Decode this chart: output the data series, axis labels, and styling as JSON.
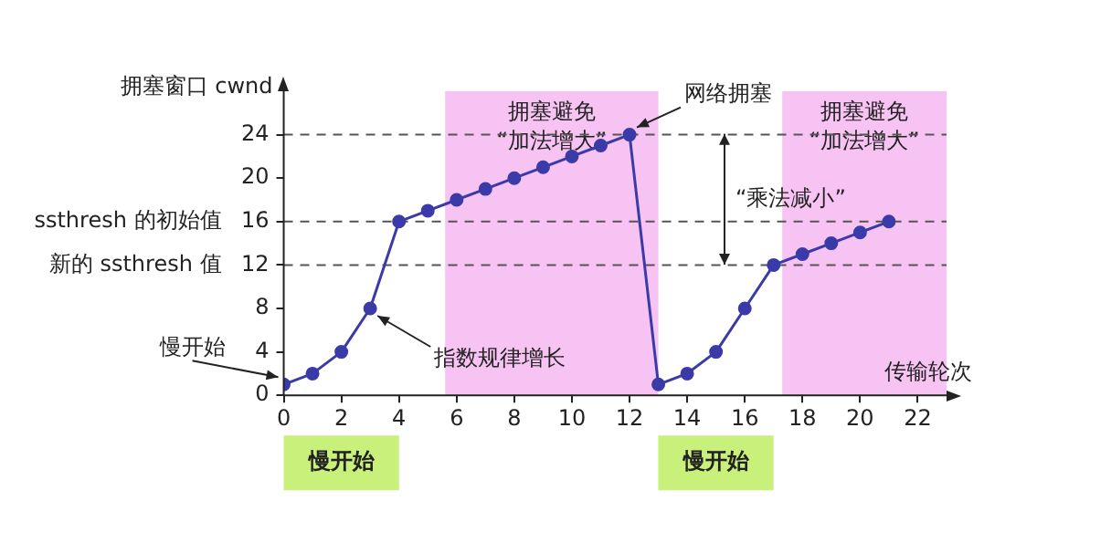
{
  "chart_data": {
    "type": "line",
    "xlabel": "传输轮次",
    "ylabel": "拥塞窗口 cwnd",
    "x": [
      0,
      1,
      2,
      3,
      4,
      5,
      6,
      7,
      8,
      9,
      10,
      11,
      12,
      13,
      14,
      15,
      16,
      17,
      18,
      19,
      20,
      21
    ],
    "series": [
      {
        "color": "#3a3aa8",
        "values": [
          1,
          2,
          4,
          8,
          16,
          17,
          18,
          19,
          20,
          21,
          22,
          23,
          24,
          1,
          2,
          4,
          8,
          12,
          13,
          14,
          15,
          16
        ]
      }
    ],
    "xlim": [
      0,
      23
    ],
    "ylim": [
      0,
      28
    ],
    "xticks": [
      0,
      2,
      4,
      6,
      8,
      10,
      12,
      14,
      16,
      18,
      20,
      22
    ],
    "yticks": [
      0,
      4,
      8,
      12,
      16,
      20,
      24
    ],
    "marker": "circle",
    "grid": false,
    "legend": false,
    "ref_lines": [
      {
        "axis": "y",
        "value": 24,
        "color": "#555555",
        "line_style": "dashed"
      },
      {
        "axis": "y",
        "value": 16,
        "label": "ssthresh 的初始值",
        "color": "#555555",
        "line_style": "dashed"
      },
      {
        "axis": "y",
        "value": 12,
        "label": "新的 ssthresh 值",
        "color": "#555555",
        "line_style": "dashed"
      }
    ],
    "bands": [
      {
        "axis": "x",
        "from": 5.6,
        "to": 13,
        "label": "拥塞避免\n“加法增大”",
        "color": "#f7c3f2"
      },
      {
        "axis": "x",
        "from": 17.3,
        "to": 23,
        "label": "拥塞避免\n“加法增大”",
        "color": "#f7c3f2"
      }
    ],
    "annotations": [
      {
        "text": "网络拥塞",
        "x": 12,
        "y": 24
      },
      "“乘法减小”",
      {
        "text": "指数规律增长",
        "x": 3,
        "y": 8
      },
      {
        "text": "慢开始",
        "x": 0,
        "y": 1
      },
      "慢开始",
      "慢开始"
    ]
  }
}
